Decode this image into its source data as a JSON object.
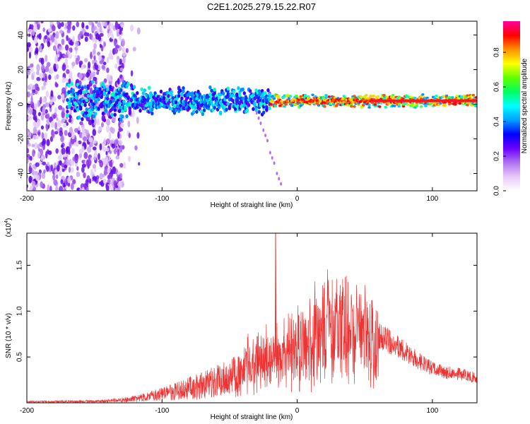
{
  "title": "C2E1.2025.279.15.22.R07",
  "chart_data": [
    {
      "type": "heatmap",
      "name": "spectrogram",
      "xlabel": "Height of straight line (km)",
      "ylabel": "Frequency (Hz)",
      "xlim": [
        -200,
        133
      ],
      "ylim": [
        -50,
        48
      ],
      "xticks": [
        -200,
        -100,
        0,
        100
      ],
      "yticks": [
        -40,
        -20,
        0,
        20,
        40
      ],
      "colorbar": {
        "label": "Normalized spectral amplitude",
        "range": [
          0,
          0.98
        ],
        "ticks": [
          "0.0",
          "0.2",
          "0.4",
          "0.6",
          "0.8"
        ],
        "colormap": [
          "#ffffff",
          "#e8c8f8",
          "#b070f0",
          "#6a00ff",
          "#0000ff",
          "#00a0ff",
          "#00ffff",
          "#00ff60",
          "#60ff00",
          "#ffff00",
          "#ff9000",
          "#ff0000",
          "#ff00a0"
        ]
      },
      "features": {
        "broadband_noise_range_km": [
          -200,
          -128
        ],
        "central_band_start_km": -170,
        "central_band_freq_hz": 2,
        "strong_signal_start_km": -20,
        "descending_tail": {
          "x_km": [
            -30,
            -25,
            -20,
            -15
          ],
          "freq_hz": [
            -5,
            -15,
            -28,
            -40
          ]
        }
      }
    },
    {
      "type": "line",
      "name": "snr",
      "xlabel": "Height of straight line (km)",
      "ylabel": "SNR (10 * v/v)",
      "multiplier": "(x10",
      "multiplier_exp": "4",
      "xlim": [
        -200,
        133
      ],
      "ylim": [
        0,
        1.85
      ],
      "xticks": [
        -200,
        -100,
        0,
        100
      ],
      "yticks": [
        "0.5",
        "1.0",
        "1.5"
      ],
      "color": "#ee3333",
      "envelope": {
        "x": [
          -200,
          -150,
          -130,
          -110,
          -90,
          -70,
          -50,
          -30,
          -15,
          0,
          10,
          20,
          30,
          40,
          50,
          60,
          70,
          80,
          90,
          100,
          110,
          120,
          133
        ],
        "y": [
          0.02,
          0.03,
          0.05,
          0.12,
          0.22,
          0.34,
          0.48,
          0.62,
          0.72,
          0.82,
          0.95,
          1.08,
          1.12,
          1.1,
          1.0,
          0.88,
          0.78,
          0.68,
          0.55,
          0.45,
          0.4,
          0.38,
          0.33
        ]
      },
      "spike": {
        "x": -16,
        "y": 1.85
      }
    }
  ]
}
